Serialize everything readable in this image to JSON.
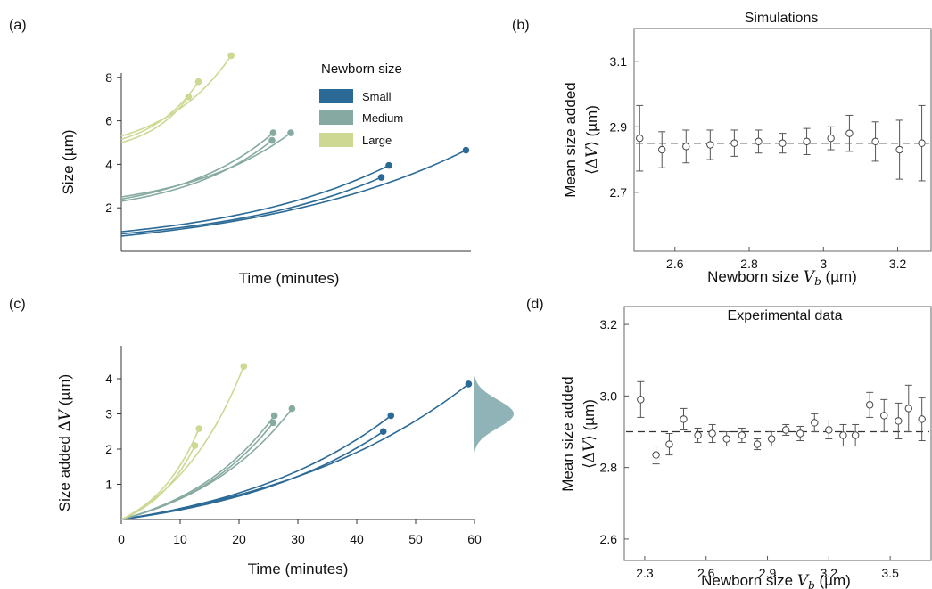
{
  "colors": {
    "small": "#2B6A96",
    "medium": "#86AAA2",
    "large": "#CED892",
    "marker": "#555555",
    "dist": "#8FB3B6"
  },
  "chart_data": [
    {
      "panel": "(a)",
      "type": "line",
      "title": "",
      "xlabel": "Time (minutes)",
      "ylabel": "Size (µm)",
      "ylim": [
        0,
        9
      ],
      "yticks": [
        "2",
        "4",
        "6",
        "8"
      ],
      "xticks": [],
      "legend": {
        "title": "Newborn size",
        "placement": "top-right",
        "entries": [
          "Small",
          "Medium",
          "Large"
        ]
      },
      "series": [
        {
          "name": "Small",
          "color_key": "small",
          "curves": [
            {
              "t_end": 44.5,
              "y0": 0.8,
              "y_end": 3.4
            },
            {
              "t_end": 45.8,
              "y0": 0.9,
              "y_end": 3.95
            },
            {
              "t_end": 59.0,
              "y0": 0.7,
              "y_end": 4.65
            }
          ]
        },
        {
          "name": "Medium",
          "color_key": "medium",
          "curves": [
            {
              "t_end": 25.8,
              "y0": 2.3,
              "y_end": 5.1
            },
            {
              "t_end": 26.0,
              "y0": 2.4,
              "y_end": 5.45
            },
            {
              "t_end": 29.0,
              "y0": 2.5,
              "y_end": 5.45
            }
          ]
        },
        {
          "name": "Large",
          "color_key": "large",
          "curves": [
            {
              "t_end": 11.5,
              "y0": 5.0,
              "y_end": 7.1
            },
            {
              "t_end": 13.2,
              "y0": 5.15,
              "y_end": 7.8
            },
            {
              "t_end": 18.8,
              "y0": 5.3,
              "y_end": 9.0
            }
          ]
        }
      ]
    },
    {
      "panel": "(b)",
      "type": "scatter",
      "title": "Simulations",
      "xlabel": "Newborn size V_b (µm)",
      "ylabel": "Mean size added ⟨ΔV⟩ (µm)",
      "xlim": [
        2.49,
        3.29
      ],
      "ylim": [
        2.52,
        3.2
      ],
      "xticks": [
        2.6,
        2.8,
        3.0,
        3.2
      ],
      "xtick_labels": [
        "2.6",
        "2.8",
        "3",
        "3.2"
      ],
      "yticks": [
        2.7,
        2.9,
        3.1
      ],
      "ytick_labels": [
        "2.7",
        "2.9",
        "3.1"
      ],
      "reference_line": 2.85,
      "points": [
        {
          "x": 2.505,
          "y": 2.865,
          "err": 0.1
        },
        {
          "x": 2.565,
          "y": 2.83,
          "err": 0.055
        },
        {
          "x": 2.63,
          "y": 2.84,
          "err": 0.05
        },
        {
          "x": 2.695,
          "y": 2.845,
          "err": 0.045
        },
        {
          "x": 2.76,
          "y": 2.85,
          "err": 0.04
        },
        {
          "x": 2.825,
          "y": 2.855,
          "err": 0.035
        },
        {
          "x": 2.89,
          "y": 2.85,
          "err": 0.03
        },
        {
          "x": 2.955,
          "y": 2.855,
          "err": 0.04
        },
        {
          "x": 3.02,
          "y": 2.865,
          "err": 0.035
        },
        {
          "x": 3.07,
          "y": 2.88,
          "err": 0.055
        },
        {
          "x": 3.14,
          "y": 2.855,
          "err": 0.06
        },
        {
          "x": 3.205,
          "y": 2.83,
          "err": 0.09
        },
        {
          "x": 3.265,
          "y": 2.85,
          "err": 0.115
        }
      ]
    },
    {
      "panel": "(c)",
      "type": "line",
      "title": "",
      "xlabel": "Time (minutes)",
      "ylabel": "Size added ΔV (µm)",
      "xlim": [
        0,
        60
      ],
      "ylim": [
        0,
        4.7
      ],
      "xticks": [
        0,
        10,
        20,
        30,
        40,
        50,
        60
      ],
      "xtick_labels": [
        "0",
        "10",
        "20",
        "30",
        "40",
        "50",
        "60"
      ],
      "yticks": [
        1,
        2,
        3,
        4
      ],
      "ytick_labels": [
        "1",
        "2",
        "3",
        "4"
      ],
      "distribution": {
        "mean": 3.0,
        "sd": 0.4,
        "orientation": "vertical, right of axes"
      },
      "series": [
        {
          "name": "Small",
          "color_key": "small",
          "curves": [
            {
              "t_end": 44.5,
              "y_end": 2.5
            },
            {
              "t_end": 45.8,
              "y_end": 2.95
            },
            {
              "t_end": 59.0,
              "y_end": 3.85
            }
          ]
        },
        {
          "name": "Medium",
          "color_key": "medium",
          "curves": [
            {
              "t_end": 25.8,
              "y_end": 2.75
            },
            {
              "t_end": 26.0,
              "y_end": 2.95
            },
            {
              "t_end": 29.0,
              "y_end": 3.15
            }
          ]
        },
        {
          "name": "Large",
          "color_key": "large",
          "curves": [
            {
              "t_end": 12.5,
              "y_end": 2.1
            },
            {
              "t_end": 13.2,
              "y_end": 2.58
            },
            {
              "t_end": 20.8,
              "y_end": 4.35
            }
          ]
        }
      ]
    },
    {
      "panel": "(d)",
      "type": "scatter",
      "title": "Experimental data",
      "xlabel": "Newborn size V_b (µm)",
      "ylabel": "Mean size added ⟨ΔV⟩ (µm)",
      "xlim": [
        2.2,
        3.7
      ],
      "ylim": [
        2.54,
        3.25
      ],
      "xticks": [
        2.3,
        2.6,
        2.9,
        3.2,
        3.5
      ],
      "xtick_labels": [
        "2.3",
        "2.6",
        "2.9",
        "3.2",
        "3.5"
      ],
      "yticks": [
        2.6,
        2.8,
        3.0,
        3.2
      ],
      "ytick_labels": [
        "2.6",
        "2.8",
        "3.0",
        "3.2"
      ],
      "reference_line": 2.9,
      "points": [
        {
          "x": 2.28,
          "y": 2.99,
          "err": 0.05
        },
        {
          "x": 2.355,
          "y": 2.835,
          "err": 0.025
        },
        {
          "x": 2.42,
          "y": 2.865,
          "err": 0.03
        },
        {
          "x": 2.49,
          "y": 2.935,
          "err": 0.03
        },
        {
          "x": 2.56,
          "y": 2.89,
          "err": 0.02
        },
        {
          "x": 2.63,
          "y": 2.895,
          "err": 0.025
        },
        {
          "x": 2.7,
          "y": 2.88,
          "err": 0.02
        },
        {
          "x": 2.775,
          "y": 2.89,
          "err": 0.02
        },
        {
          "x": 2.85,
          "y": 2.865,
          "err": 0.015
        },
        {
          "x": 2.92,
          "y": 2.88,
          "err": 0.02
        },
        {
          "x": 2.99,
          "y": 2.905,
          "err": 0.015
        },
        {
          "x": 3.06,
          "y": 2.895,
          "err": 0.02
        },
        {
          "x": 3.13,
          "y": 2.925,
          "err": 0.025
        },
        {
          "x": 3.2,
          "y": 2.905,
          "err": 0.025
        },
        {
          "x": 3.27,
          "y": 2.89,
          "err": 0.03
        },
        {
          "x": 3.33,
          "y": 2.89,
          "err": 0.03
        },
        {
          "x": 3.4,
          "y": 2.975,
          "err": 0.035
        },
        {
          "x": 3.47,
          "y": 2.945,
          "err": 0.045
        },
        {
          "x": 3.54,
          "y": 2.93,
          "err": 0.05
        },
        {
          "x": 3.59,
          "y": 2.965,
          "err": 0.065
        },
        {
          "x": 3.655,
          "y": 2.935,
          "err": 0.06
        }
      ]
    }
  ]
}
